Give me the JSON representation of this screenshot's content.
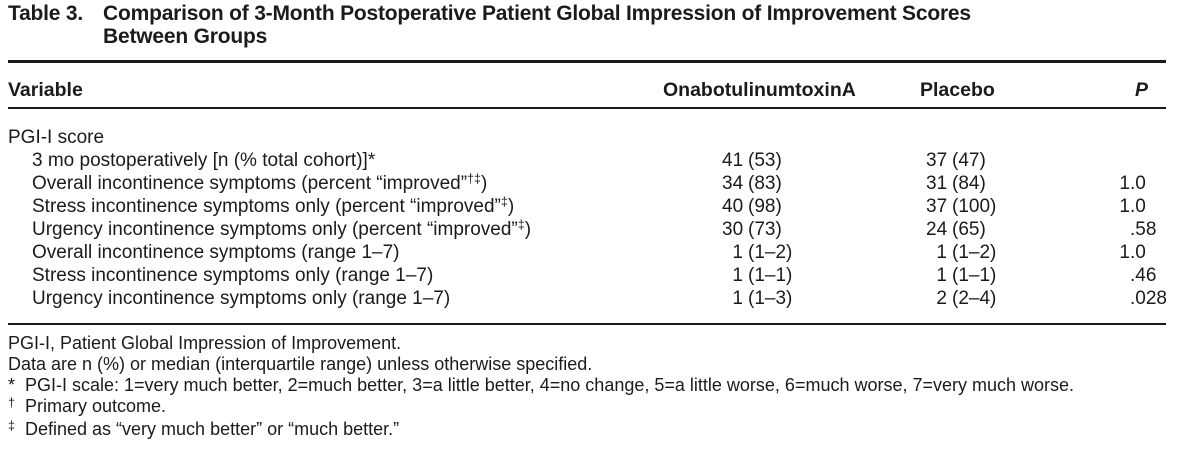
{
  "colors": {
    "background": "#ffffff",
    "text": "#1b1b1b",
    "rule": "#1b1b1b"
  },
  "title": {
    "label": "Table 3.",
    "line1": "Comparison of 3-Month Postoperative Patient Global Impression of Improvement Scores",
    "line2": "Between Groups"
  },
  "columns": {
    "variable": "Variable",
    "treatment": "OnabotulinumtoxinA",
    "placebo": "Placebo",
    "p": "P"
  },
  "rows": [
    {
      "label": "PGI-I score",
      "label_sup": "",
      "label_post": "",
      "indent": false,
      "treatment": "",
      "placebo": "",
      "p": ""
    },
    {
      "label": "3 mo postoperatively [n (% total cohort)]*",
      "label_sup": "",
      "label_post": "",
      "indent": true,
      "treatment": "41 (53)",
      "placebo": "37 (47)",
      "p": ""
    },
    {
      "label": "Overall incontinence symptoms (percent “improved”",
      "label_sup": "†‡",
      "label_post": ")",
      "indent": true,
      "treatment": "34 (83)",
      "placebo": "31 (84)",
      "p": "1.0"
    },
    {
      "label": "Stress incontinence symptoms only (percent “improved”",
      "label_sup": "‡",
      "label_post": ")",
      "indent": true,
      "treatment": "40 (98)",
      "placebo": "37 (100)",
      "p": "1.0"
    },
    {
      "label": "Urgency incontinence symptoms only (percent “improved”",
      "label_sup": "‡",
      "label_post": ")",
      "indent": true,
      "treatment": "30 (73)",
      "placebo": "24 (65)",
      "p": ".58"
    },
    {
      "label": "Overall incontinence symptoms (range 1–7)",
      "label_sup": "",
      "label_post": "",
      "indent": true,
      "treatment": "1 (1–2)",
      "placebo": "1 (1–2)",
      "p": "1.0"
    },
    {
      "label": "Stress incontinence symptoms only (range 1–7)",
      "label_sup": "",
      "label_post": "",
      "indent": true,
      "treatment": "1 (1–1)",
      "placebo": "1 (1–1)",
      "p": ".46"
    },
    {
      "label": "Urgency incontinence symptoms only (range 1–7)",
      "label_sup": "",
      "label_post": "",
      "indent": true,
      "treatment": "1 (1–3)",
      "placebo": "2 (2–4)",
      "p": ".028"
    }
  ],
  "footnotes": [
    {
      "marker": "",
      "sup": false,
      "text": "PGI-I, Patient Global Impression of Improvement."
    },
    {
      "marker": "",
      "sup": false,
      "text": "Data are n (%) or median (interquartile range) unless otherwise specified."
    },
    {
      "marker": "*",
      "sup": false,
      "text": "PGI-I scale: 1=very much better, 2=much better, 3=a little better, 4=no change, 5=a little worse, 6=much worse, 7=very much worse."
    },
    {
      "marker": "†",
      "sup": true,
      "text": "Primary outcome."
    },
    {
      "marker": "‡",
      "sup": true,
      "text": "Defined as “very much better” or “much better.”"
    }
  ]
}
